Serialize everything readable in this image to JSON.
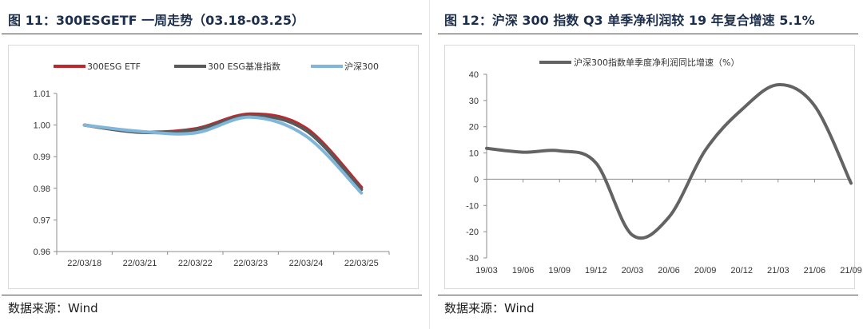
{
  "left_panel": {
    "title": "图 11：300ESGETF 一周走势（03.18-03.25）",
    "source": "数据来源：Wind"
  },
  "right_panel": {
    "title": "图 12：沪深 300 指数 Q3 单季净利润较 19 年复合增速 5.1%",
    "source": "数据来源：Wind"
  },
  "chart_data": [
    {
      "type": "line",
      "categories": [
        "22/03/18",
        "22/03/21",
        "22/03/22",
        "22/03/23",
        "22/03/24",
        "22/03/25"
      ],
      "series": [
        {
          "name": "300ESG ETF",
          "color": "#c0272d",
          "values": [
            1.0,
            0.9978,
            0.9988,
            1.0035,
            0.999,
            0.9803
          ]
        },
        {
          "name": "300 ESG基准指数",
          "color": "#595959",
          "values": [
            1.0,
            0.9977,
            0.9985,
            1.003,
            0.9983,
            0.9796
          ]
        },
        {
          "name": "沪深300",
          "color": "#7fb6d9",
          "values": [
            1.0,
            0.998,
            0.9975,
            1.0025,
            0.9965,
            0.9785
          ]
        }
      ],
      "ylim": [
        0.96,
        1.01
      ],
      "yticks": [
        "1.01",
        "1.00",
        "0.99",
        "0.98",
        "0.97",
        "0.96"
      ],
      "legend_position": "top"
    },
    {
      "type": "line",
      "categories": [
        "19/03",
        "19/06",
        "19/09",
        "19/12",
        "20/03",
        "20/06",
        "20/09",
        "20/12",
        "21/03",
        "21/06",
        "21/09"
      ],
      "series": [
        {
          "name": "沪深300指数单季度净利润同比增速（%）",
          "color": "#636363",
          "values": [
            11.8,
            10.3,
            10.8,
            6.2,
            -21.3,
            -14.5,
            11.0,
            26.5,
            36.0,
            28.0,
            -1.5
          ]
        }
      ],
      "ylim": [
        -30,
        40
      ],
      "yticks": [
        "40",
        "30",
        "20",
        "10",
        "0",
        "-10",
        "-20",
        "-30"
      ],
      "legend_position": "top"
    }
  ]
}
